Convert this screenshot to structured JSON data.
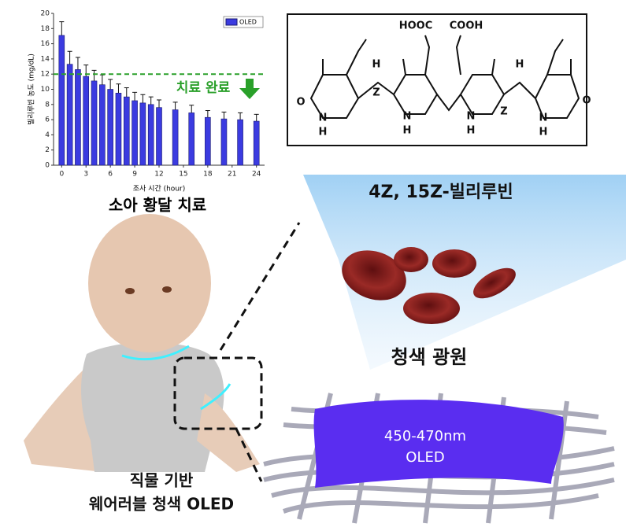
{
  "chart_data": {
    "type": "bar",
    "ylabel": "빌리루빈 농도 (mg/dL)",
    "xlabel": "조사 시간 (hour)",
    "title": "소아 황달 치료",
    "x": [
      0,
      1,
      2,
      3,
      4,
      5,
      6,
      7,
      8,
      9,
      10,
      11,
      12,
      14,
      16,
      18,
      20,
      22,
      24
    ],
    "series": [
      {
        "name": "OLED",
        "color": "#3b3be0",
        "values": [
          17.1,
          13.3,
          12.6,
          11.7,
          11.1,
          10.6,
          10.0,
          9.5,
          9.0,
          8.5,
          8.2,
          8.0,
          7.6,
          7.3,
          6.9,
          6.3,
          6.1,
          6.0,
          5.8
        ],
        "errors": [
          1.8,
          1.7,
          1.6,
          1.5,
          1.4,
          1.3,
          1.3,
          1.2,
          1.2,
          1.1,
          1.1,
          1.0,
          1.0,
          1.0,
          1.0,
          0.9,
          0.9,
          0.9,
          0.9
        ]
      }
    ],
    "xlim": [
      -1,
      25
    ],
    "xticks": [
      0,
      3,
      6,
      9,
      12,
      15,
      18,
      21,
      24
    ],
    "ylim": [
      0,
      20
    ],
    "yticks": [
      0,
      2,
      4,
      6,
      8,
      10,
      12,
      14,
      16,
      18,
      20
    ],
    "threshold": 12,
    "threshold_color": "#2aa02a",
    "annotation": "치료 완료",
    "legend": "upper right"
  },
  "structure": {
    "atoms": [
      "HOOC",
      "COOH",
      "H",
      "H",
      "Z",
      "Z",
      "O",
      "O",
      "N",
      "H",
      "N",
      "H",
      "N",
      "H",
      "N",
      "H"
    ]
  },
  "labels": {
    "molecule": "4Z, 15Z-빌리루빈",
    "light": "청색 광원",
    "wavelength": "450-470nm",
    "device": "OLED",
    "caption_line1": "직물 기반",
    "caption_line2": "웨어러블 청색 OLED"
  }
}
